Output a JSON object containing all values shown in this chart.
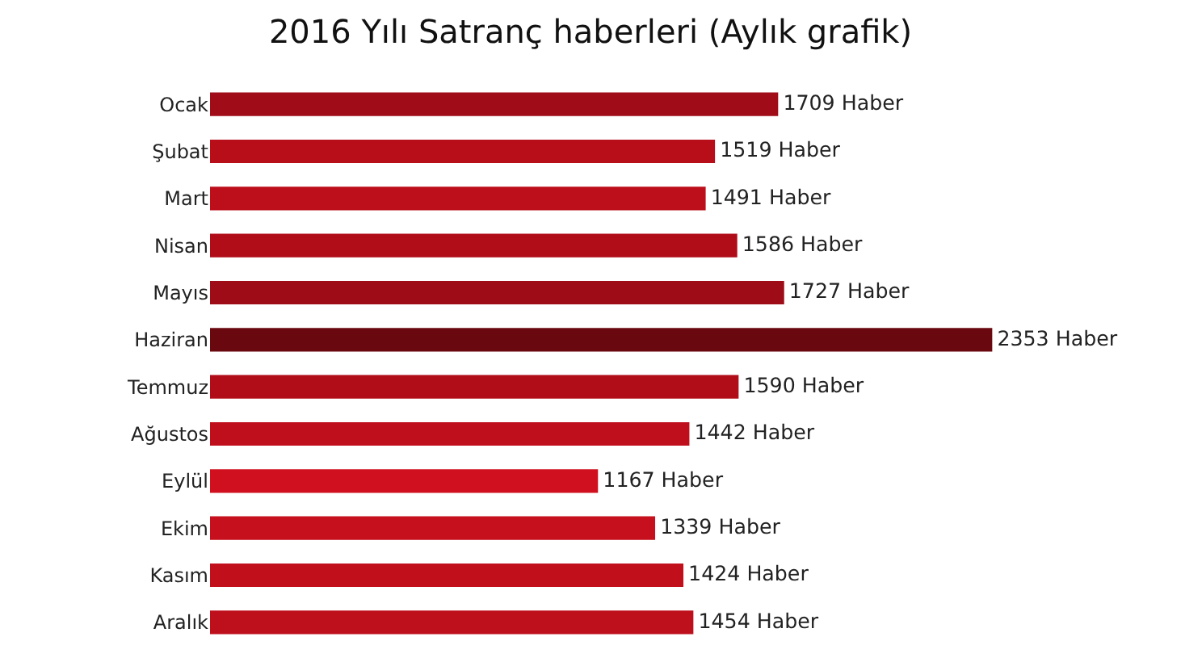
{
  "chart_data": {
    "type": "bar",
    "orientation": "horizontal",
    "title": "2016 Yılı Satranç haberleri (Aylık grafik)",
    "categories": [
      "Ocak",
      "Şubat",
      "Mart",
      "Nisan",
      "Mayıs",
      "Haziran",
      "Temmuz",
      "Ağustos",
      "Eylül",
      "Ekim",
      "Kasım",
      "Aralık"
    ],
    "values": [
      1709,
      1519,
      1491,
      1586,
      1727,
      2353,
      1590,
      1442,
      1167,
      1339,
      1424,
      1454
    ],
    "value_labels": [
      "1709 Haber",
      "1519 Haber",
      "1491 Haber",
      "1586 Haber",
      "1727 Haber",
      "2353 Haber",
      "1590 Haber",
      "1442 Haber",
      "1167 Haber",
      "1339 Haber",
      "1424 Haber",
      "1454 Haber"
    ],
    "colors": [
      "#a00c18",
      "#b80e1a",
      "#bc0e1b",
      "#b00d19",
      "#9e0c17",
      "#6a0810",
      "#b00d19",
      "#c00f1c",
      "#d0101e",
      "#c6101d",
      "#c20f1c",
      "#be0f1c"
    ]
  }
}
